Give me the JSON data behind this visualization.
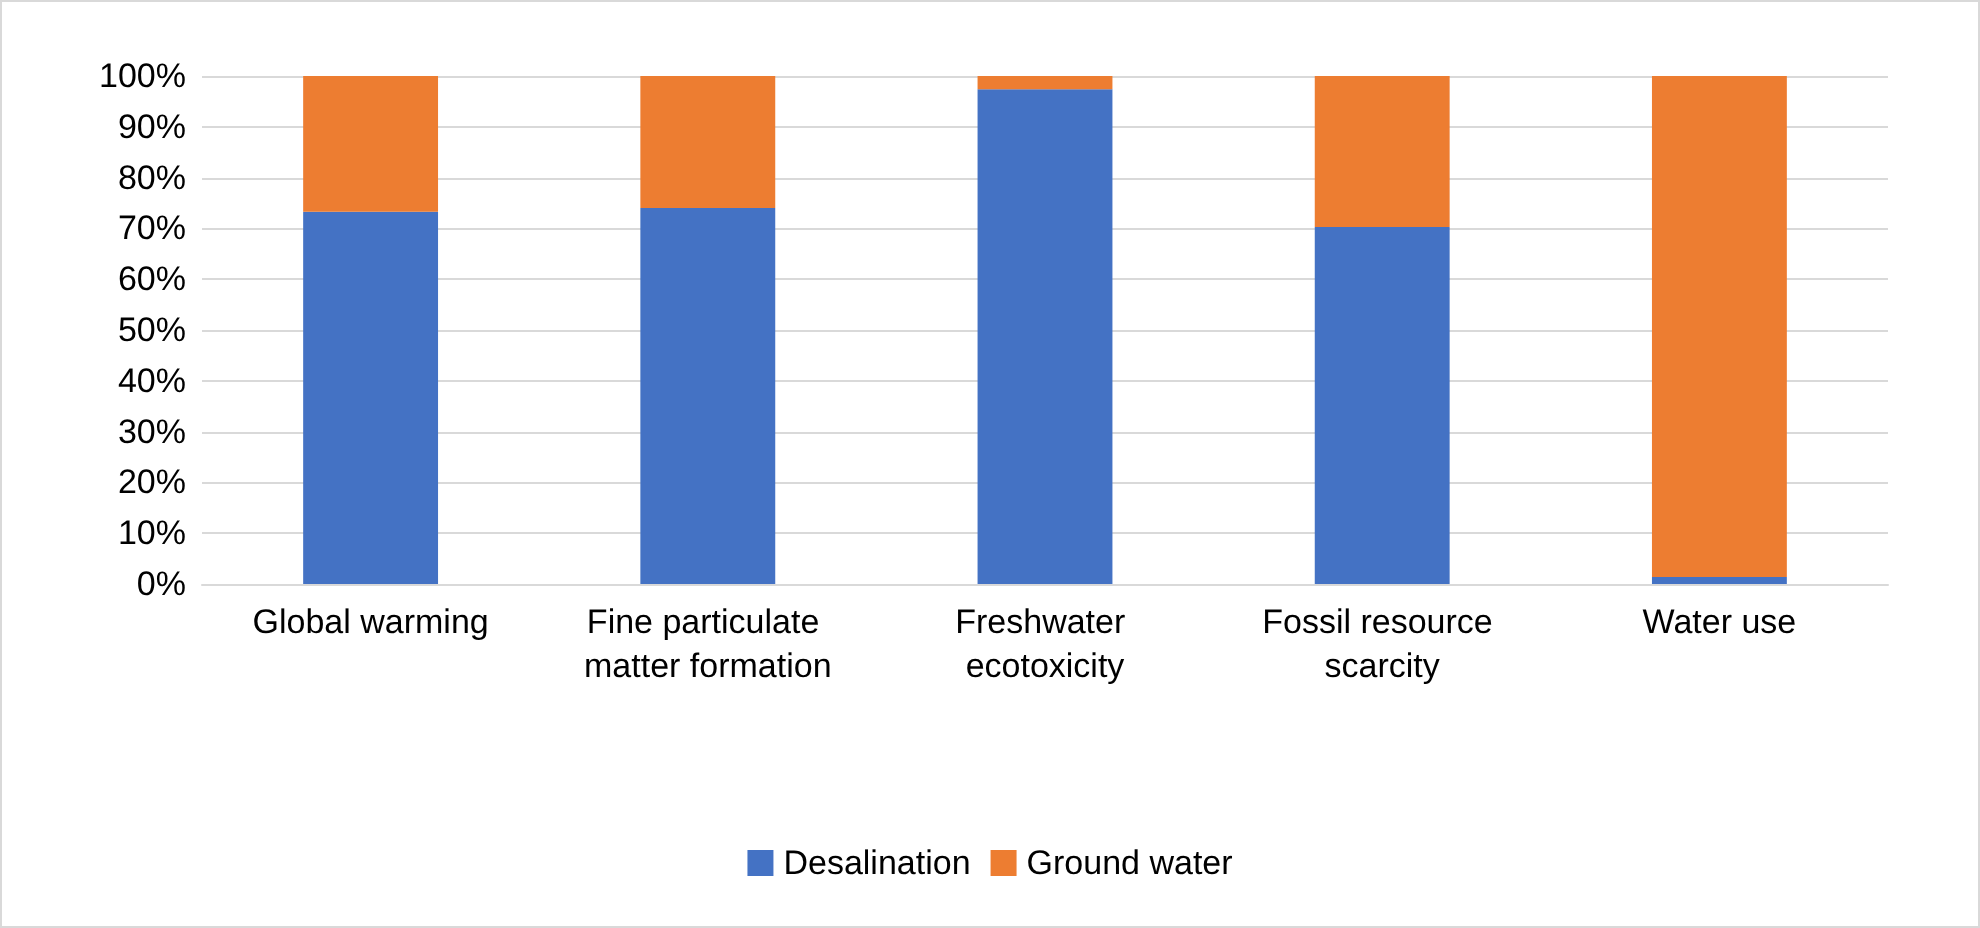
{
  "chart_data": {
    "type": "bar",
    "stacked": true,
    "categories": [
      "Global warming",
      "Fine particulate matter formation",
      "Freshwater ecotoxicity",
      "Fossil resource scarcity",
      "Water use"
    ],
    "series": [
      {
        "name": "Desalination",
        "color": "#4472c4",
        "values": [
          73.3,
          74.0,
          97.4,
          70.3,
          1.4
        ]
      },
      {
        "name": "Ground water",
        "color": "#ed7d31",
        "values": [
          26.7,
          26.0,
          2.6,
          29.7,
          98.6
        ]
      }
    ],
    "ylim": [
      0,
      100
    ],
    "yticks": [
      {
        "value": 0,
        "label": "0%"
      },
      {
        "value": 10,
        "label": "10%"
      },
      {
        "value": 20,
        "label": "20%"
      },
      {
        "value": 30,
        "label": "30%"
      },
      {
        "value": 40,
        "label": "40%"
      },
      {
        "value": 50,
        "label": "50%"
      },
      {
        "value": 60,
        "label": "60%"
      },
      {
        "value": 70,
        "label": "70%"
      },
      {
        "value": 80,
        "label": "80%"
      },
      {
        "value": 90,
        "label": "90%"
      },
      {
        "value": 100,
        "label": "100%"
      }
    ],
    "grid": "y",
    "legend": "bottom"
  }
}
